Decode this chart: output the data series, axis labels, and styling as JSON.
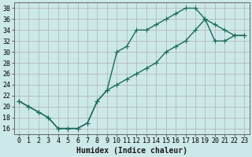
{
  "xlabel": "Humidex (Indice chaleur)",
  "bg_color": "#cce8e8",
  "grid_color": "#b0b0b0",
  "line_color": "#1a6b5a",
  "xlim": [
    -0.5,
    23.5
  ],
  "ylim": [
    15,
    39
  ],
  "yticks": [
    16,
    18,
    20,
    22,
    24,
    26,
    28,
    30,
    32,
    34,
    36,
    38
  ],
  "xticks": [
    0,
    1,
    2,
    3,
    4,
    5,
    6,
    7,
    8,
    9,
    10,
    11,
    12,
    13,
    14,
    15,
    16,
    17,
    18,
    19,
    20,
    21,
    22,
    23
  ],
  "curve1_x": [
    0,
    1,
    2,
    3,
    4,
    5,
    6,
    7,
    8,
    9,
    10,
    11,
    12,
    13,
    14,
    15,
    16,
    17,
    18,
    19,
    20,
    21,
    22,
    23
  ],
  "curve1_y": [
    21,
    20,
    19,
    18,
    16,
    16,
    16,
    17,
    21,
    23,
    30,
    31,
    34,
    34,
    35,
    36,
    37,
    38,
    38,
    36,
    35,
    34,
    33,
    33
  ],
  "curve2_x": [
    0,
    1,
    2,
    3,
    4,
    5,
    6,
    7,
    8,
    9,
    10,
    11,
    12,
    13,
    14,
    15,
    16,
    17,
    18,
    19,
    20,
    21,
    22,
    23
  ],
  "curve2_y": [
    21,
    20,
    19,
    18,
    16,
    16,
    16,
    17,
    21,
    23,
    24,
    25,
    26,
    27,
    28,
    30,
    31,
    32,
    34,
    36,
    32,
    32,
    33,
    33
  ],
  "marker_size": 2.5,
  "linewidth": 1.0,
  "font_size_label": 7,
  "font_size_tick": 6
}
